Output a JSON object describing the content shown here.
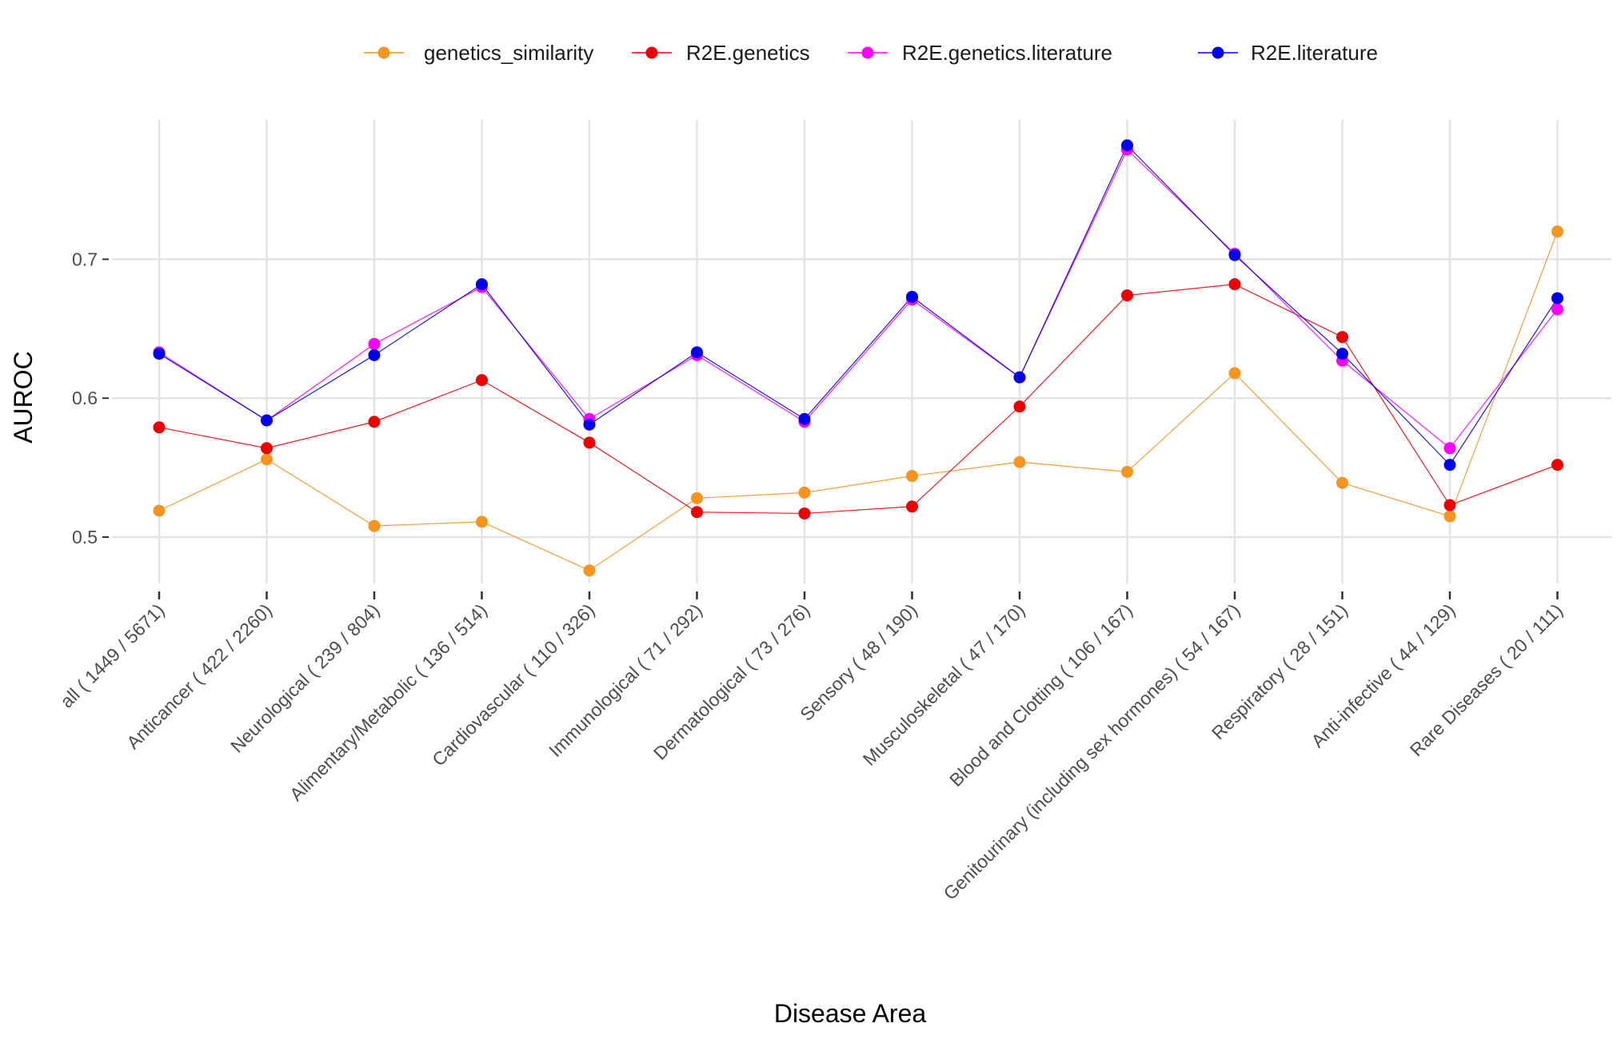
{
  "chart_data": {
    "type": "line",
    "title": "",
    "xlabel": "Disease Area",
    "ylabel": "AUROC",
    "ylim": [
      0.46,
      0.8
    ],
    "yticks": [
      0.5,
      0.6,
      0.7
    ],
    "ytick_labels": [
      "0.5",
      "0.6",
      "0.7"
    ],
    "grid": true,
    "legend_position": "top",
    "categories": [
      "all  ( 1449 / 5671)",
      "Anticancer  ( 422 / 2260)",
      "Neurological  ( 239 / 804)",
      "Alimentary/Metabolic  ( 136 / 514)",
      "Cardiovascular  ( 110 / 326)",
      "Immunological  ( 71 / 292)",
      "Dermatological  ( 73 / 276)",
      "Sensory  ( 48 / 190)",
      "Musculoskeletal  ( 47 / 170)",
      "Blood and Clotting  ( 106 / 167)",
      "Genitourinary (including sex hormones)  ( 54 / 167)",
      "Respiratory  ( 28 / 151)",
      "Anti-infective  ( 44 / 129)",
      "Rare Diseases  ( 20 / 111)"
    ],
    "series": [
      {
        "name": "genetics_similarity",
        "color": "#F7941D",
        "values": [
          0.519,
          0.556,
          0.508,
          0.511,
          0.476,
          0.528,
          0.532,
          0.544,
          0.554,
          0.547,
          0.618,
          0.539,
          0.515,
          0.72
        ]
      },
      {
        "name": "R2E.genetics",
        "color": "#EE0000",
        "values": [
          0.579,
          0.564,
          0.583,
          0.613,
          0.568,
          0.518,
          0.517,
          0.522,
          0.594,
          0.674,
          0.682,
          0.644,
          0.523,
          0.552
        ]
      },
      {
        "name": "R2E.genetics.literature",
        "color": "#FF00FF",
        "values": [
          0.633,
          0.584,
          0.639,
          0.68,
          0.585,
          0.631,
          0.583,
          0.671,
          0.615,
          0.779,
          0.704,
          0.627,
          0.564,
          0.664
        ]
      },
      {
        "name": "R2E.literature",
        "color": "#0000EE",
        "values": [
          0.632,
          0.584,
          0.631,
          0.682,
          0.581,
          0.633,
          0.585,
          0.673,
          0.615,
          0.782,
          0.703,
          0.632,
          0.552,
          0.672
        ]
      }
    ]
  }
}
